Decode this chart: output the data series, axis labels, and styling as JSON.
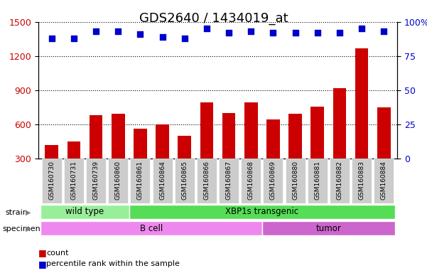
{
  "title": "GDS2640 / 1434019_at",
  "samples": [
    "GSM160730",
    "GSM160731",
    "GSM160739",
    "GSM160860",
    "GSM160861",
    "GSM160864",
    "GSM160865",
    "GSM160866",
    "GSM160867",
    "GSM160868",
    "GSM160869",
    "GSM160880",
    "GSM160881",
    "GSM160882",
    "GSM160883",
    "GSM160884"
  ],
  "counts": [
    420,
    450,
    680,
    690,
    560,
    600,
    500,
    790,
    700,
    790,
    645,
    690,
    755,
    920,
    1270,
    750
  ],
  "percentiles": [
    88,
    88,
    93,
    93,
    91,
    89,
    88,
    95,
    92,
    93,
    92,
    92,
    92,
    92,
    95,
    93
  ],
  "strain_groups": [
    {
      "label": "wild type",
      "start": 0,
      "end": 4
    },
    {
      "label": "XBP1s transgenic",
      "start": 4,
      "end": 15
    }
  ],
  "specimen_groups": [
    {
      "label": "B cell",
      "start": 0,
      "end": 10
    },
    {
      "label": "tumor",
      "start": 10,
      "end": 15
    }
  ],
  "bar_color": "#cc0000",
  "dot_color": "#0000cc",
  "wild_type_color": "#99ee99",
  "transgenic_color": "#55dd55",
  "bcell_color": "#ee88ee",
  "tumor_color": "#cc66cc",
  "tick_label_bg": "#cccccc",
  "ylim_left": [
    300,
    1500
  ],
  "ylim_right": [
    0,
    100
  ],
  "yticks_left": [
    300,
    600,
    900,
    1200,
    1500
  ],
  "yticks_right": [
    0,
    25,
    50,
    75,
    100
  ],
  "grid_values": [
    600,
    900,
    1200
  ],
  "title_fontsize": 13,
  "axis_fontsize": 9,
  "legend_fontsize": 8
}
